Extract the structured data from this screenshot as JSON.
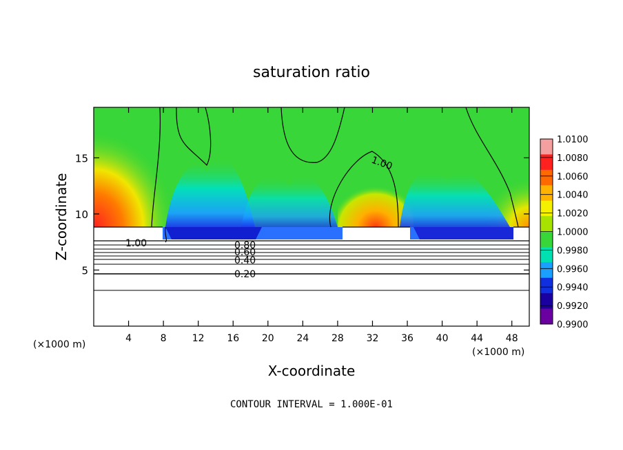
{
  "chart_data": {
    "type": "heatmap",
    "title": "saturation ratio",
    "xlabel": "X-coordinate",
    "ylabel": "Z-coordinate",
    "x_unit_label_left": "(×1000 m)",
    "x_unit_label_right": "(×1000 m)",
    "xlim": [
      0,
      50
    ],
    "ylim": [
      0,
      19.5
    ],
    "x_ticks": [
      4,
      8,
      12,
      16,
      20,
      24,
      28,
      32,
      36,
      40,
      44,
      48
    ],
    "y_ticks": [
      5,
      10,
      15
    ],
    "colorbar": {
      "min": 0.99,
      "max": 1.01,
      "tick_labels": [
        "1.0100",
        "1.0080",
        "1.0060",
        "1.0040",
        "1.0020",
        "1.0000",
        "0.9980",
        "0.9960",
        "0.9940",
        "0.9920",
        "0.9900"
      ],
      "colors": [
        "#f4a0a0",
        "#ff2020",
        "#ff6a00",
        "#ffb300",
        "#f4f000",
        "#a8e200",
        "#38d638",
        "#00e0b0",
        "#1aa0ff",
        "#1030e0",
        "#1a00a0",
        "#6a00a0"
      ]
    },
    "contour_levels": [
      0.1,
      0.2,
      0.3,
      0.4,
      0.5,
      0.6,
      0.7,
      0.8,
      0.9,
      1.0
    ],
    "contour_labels": [
      "1.00",
      "1.00",
      "0.80",
      "0.60",
      "0.40",
      "0.20"
    ],
    "annotation": "CONTOUR INTERVAL = 1.000E-01"
  }
}
